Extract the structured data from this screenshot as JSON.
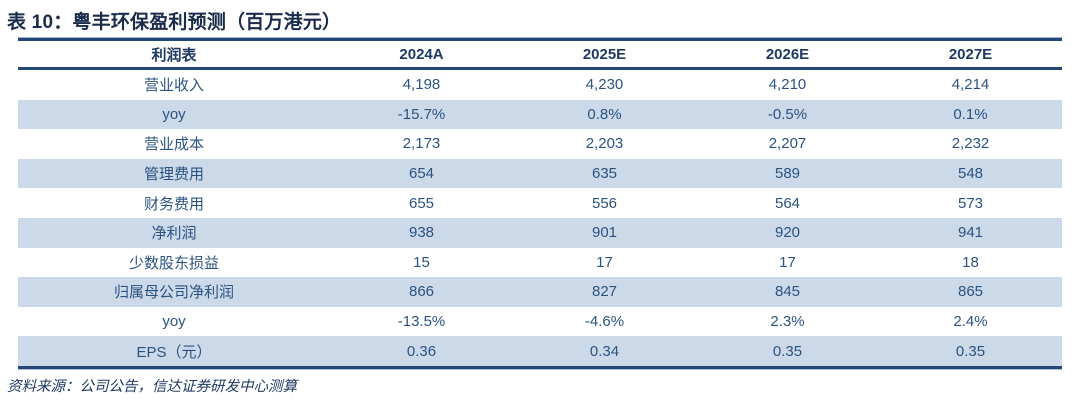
{
  "title": "表 10：粤丰环保盈利预测（百万港元）",
  "source_note": "资料来源：公司公告，信达证券研发中心测算",
  "table": {
    "columns": [
      "利润表",
      "2024A",
      "2025E",
      "2026E",
      "2027E"
    ],
    "rows": [
      {
        "label": "营业收入",
        "values": [
          "4,198",
          "4,230",
          "4,210",
          "4,214"
        ]
      },
      {
        "label": "yoy",
        "values": [
          "-15.7%",
          "0.8%",
          "-0.5%",
          "0.1%"
        ]
      },
      {
        "label": "营业成本",
        "values": [
          "2,173",
          "2,203",
          "2,207",
          "2,232"
        ]
      },
      {
        "label": "管理费用",
        "values": [
          "654",
          "635",
          "589",
          "548"
        ]
      },
      {
        "label": "财务费用",
        "values": [
          "655",
          "556",
          "564",
          "573"
        ]
      },
      {
        "label": "净利润",
        "values": [
          "938",
          "901",
          "920",
          "941"
        ]
      },
      {
        "label": "少数股东损益",
        "values": [
          "15",
          "17",
          "17",
          "18"
        ]
      },
      {
        "label": "归属母公司净利润",
        "values": [
          "866",
          "827",
          "845",
          "865"
        ]
      },
      {
        "label": "yoy",
        "values": [
          "-13.5%",
          "-4.6%",
          "2.3%",
          "2.4%"
        ]
      },
      {
        "label": "EPS（元）",
        "values": [
          "0.36",
          "0.34",
          "0.35",
          "0.35"
        ]
      }
    ]
  },
  "colors": {
    "title_text": "#1a2b4c",
    "header_text": "#1e3a63",
    "body_text": "#2b5382",
    "stripe_background": "#cbd9e8",
    "rule_dark": "#24477a",
    "rule_light": "#9db2ce"
  }
}
